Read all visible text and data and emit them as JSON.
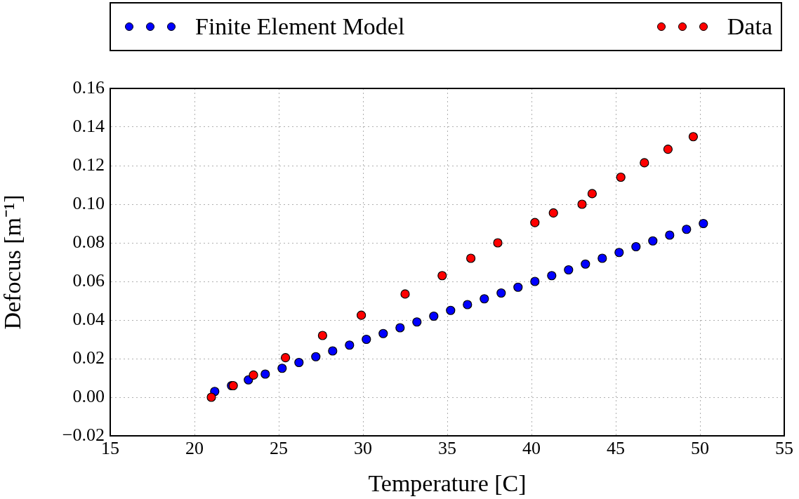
{
  "chart_data": {
    "type": "scatter",
    "xlabel": "Temperature [C]",
    "ylabel": "Defocus [m⁻¹]",
    "xlim": [
      15,
      55
    ],
    "xticks": [
      15,
      20,
      25,
      30,
      35,
      40,
      45,
      50,
      55
    ],
    "ylim": [
      -0.02,
      0.16
    ],
    "yticks": [
      {
        "value": -0.02,
        "label": "−0.02"
      },
      {
        "value": 0,
        "label": "0.00"
      },
      {
        "value": 0.02,
        "label": "0.02"
      },
      {
        "value": 0.04,
        "label": "0.04"
      },
      {
        "value": 0.06,
        "label": "0.06"
      },
      {
        "value": 0.08,
        "label": "0.08"
      },
      {
        "value": 0.1,
        "label": "0.10"
      },
      {
        "value": 0.12,
        "label": "0.12"
      },
      {
        "value": 0.14,
        "label": "0.14"
      },
      {
        "value": 0.16,
        "label": "0.16"
      }
    ],
    "grid": true,
    "legend": "top",
    "marker": "circle",
    "series": [
      {
        "name": "Finite Element Model",
        "color": "#0000ff",
        "x": [
          21.2,
          22.2,
          23.2,
          24.2,
          25.2,
          26.2,
          27.2,
          28.2,
          29.2,
          30.2,
          31.2,
          32.2,
          33.2,
          34.2,
          35.2,
          36.2,
          37.2,
          38.2,
          39.2,
          40.2,
          41.2,
          42.2,
          43.2,
          44.2,
          45.2,
          46.2,
          47.2,
          48.2,
          49.2,
          50.2
        ],
        "values": [
          0.003,
          0.006,
          0.009,
          0.012,
          0.015,
          0.018,
          0.021,
          0.024,
          0.027,
          0.03,
          0.033,
          0.036,
          0.039,
          0.042,
          0.045,
          0.048,
          0.051,
          0.054,
          0.057,
          0.06,
          0.063,
          0.066,
          0.069,
          0.072,
          0.075,
          0.078,
          0.081,
          0.084,
          0.087,
          0.09
        ]
      },
      {
        "name": "Data",
        "color": "#ff0000",
        "x": [
          21.0,
          22.3,
          23.5,
          25.4,
          27.6,
          29.9,
          32.5,
          34.7,
          36.4,
          38.0,
          40.2,
          41.3,
          43.0,
          43.6,
          45.3,
          46.7,
          48.1,
          49.6
        ],
        "values": [
          0.0,
          0.006,
          0.0115,
          0.0205,
          0.032,
          0.0425,
          0.0535,
          0.063,
          0.072,
          0.08,
          0.0905,
          0.0955,
          0.1,
          0.1055,
          0.114,
          0.1215,
          0.1285,
          0.135
        ]
      }
    ]
  }
}
